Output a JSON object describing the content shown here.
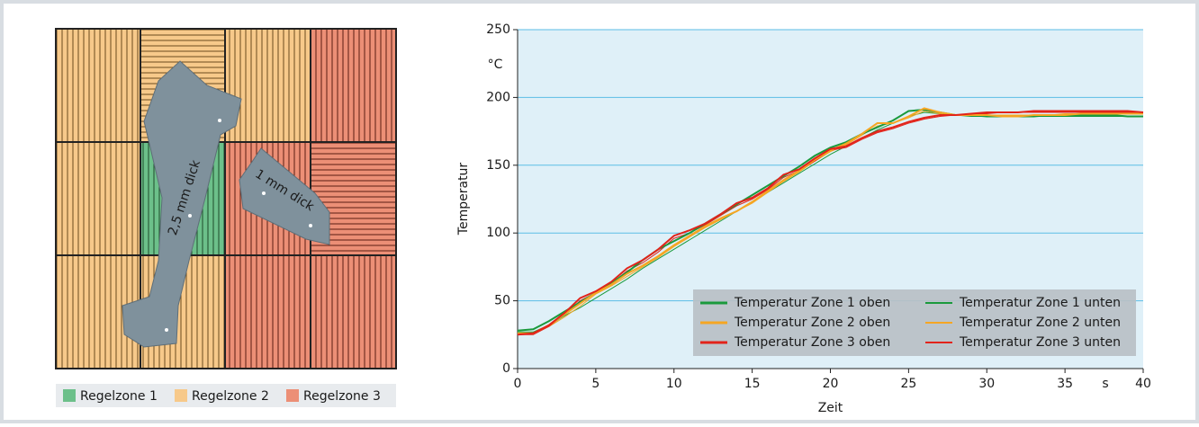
{
  "diagram": {
    "labels": [
      "2,5 mm dick",
      "1 mm dick"
    ],
    "legend": [
      {
        "name": "Regelzone 1",
        "color": "#6cc08a"
      },
      {
        "name": "Regelzone 2",
        "color": "#f7c98a"
      },
      {
        "name": "Regelzone 3",
        "color": "#ec8f76"
      }
    ]
  },
  "chart_data": {
    "type": "line",
    "xlabel": "Zeit",
    "ylabel": "Temperatur",
    "x_unit": "s",
    "y_unit": "°C",
    "x": [
      0,
      1,
      2,
      3,
      4,
      5,
      6,
      7,
      8,
      9,
      10,
      11,
      12,
      13,
      14,
      15,
      16,
      17,
      18,
      19,
      20,
      21,
      22,
      23,
      24,
      25,
      26,
      27,
      28,
      29,
      30,
      31,
      32,
      33,
      34,
      35,
      36,
      37,
      38,
      39,
      40
    ],
    "series": [
      {
        "name": "Temperatur Zone 1 oben",
        "color": "#1a9a3c",
        "width": 2,
        "values": [
          28,
          29,
          35,
          42,
          49,
          56,
          63,
          71,
          80,
          88,
          94,
          100,
          107,
          114,
          121,
          128,
          135,
          142,
          149,
          157,
          163,
          167,
          173,
          178,
          183,
          190,
          191,
          189,
          187,
          187,
          186,
          186,
          186,
          186,
          187,
          187,
          187,
          187,
          187,
          186,
          186
        ]
      },
      {
        "name": "Temperatur Zone 2 oben",
        "color": "#f5a623",
        "width": 2,
        "values": [
          26,
          26,
          32,
          40,
          48,
          56,
          62,
          70,
          76,
          83,
          91,
          98,
          105,
          111,
          116,
          123,
          131,
          139,
          146,
          154,
          161,
          166,
          173,
          181,
          181,
          186,
          192,
          189,
          187,
          187,
          187,
          186,
          186,
          187,
          187,
          187,
          188,
          188,
          188,
          188,
          188
        ]
      },
      {
        "name": "Temperatur Zone 3 oben",
        "color": "#e2231a",
        "width": 2,
        "values": [
          25,
          26,
          32,
          41,
          52,
          57,
          64,
          74,
          80,
          88,
          98,
          102,
          107,
          114,
          122,
          126,
          133,
          143,
          147,
          155,
          162,
          164,
          170,
          175,
          178,
          182,
          185,
          187,
          187,
          188,
          189,
          189,
          189,
          190,
          190,
          190,
          190,
          190,
          190,
          190,
          189
        ]
      },
      {
        "name": "Temperatur Zone 1 unten",
        "color": "#1a9a3c",
        "width": 1,
        "values": [
          27,
          27,
          32,
          39,
          45,
          52,
          59,
          66,
          74,
          81,
          88,
          95,
          102,
          109,
          116,
          123,
          130,
          137,
          144,
          151,
          158,
          164,
          170,
          176,
          181,
          186,
          189,
          188,
          187,
          186,
          186,
          186,
          186,
          186,
          186,
          186,
          186,
          186,
          186,
          186,
          186
        ]
      },
      {
        "name": "Temperatur Zone 2 unten",
        "color": "#f5a623",
        "width": 1,
        "values": [
          25,
          26,
          31,
          38,
          46,
          55,
          61,
          68,
          75,
          82,
          90,
          97,
          104,
          110,
          116,
          122,
          130,
          138,
          145,
          153,
          160,
          165,
          172,
          179,
          181,
          185,
          190,
          188,
          187,
          187,
          187,
          187,
          187,
          187,
          187,
          188,
          188,
          188,
          188,
          188,
          188
        ]
      },
      {
        "name": "Temperatur Zone 3 unten",
        "color": "#e2231a",
        "width": 1,
        "values": [
          25,
          25,
          31,
          40,
          50,
          56,
          63,
          72,
          78,
          86,
          96,
          100,
          106,
          113,
          120,
          125,
          132,
          141,
          146,
          153,
          161,
          163,
          169,
          174,
          177,
          181,
          184,
          186,
          187,
          188,
          188,
          189,
          189,
          189,
          189,
          189,
          189,
          189,
          189,
          189,
          189
        ]
      }
    ],
    "xlim": [
      0,
      40
    ],
    "ylim": [
      0,
      250
    ],
    "xticks": [
      0,
      5,
      10,
      15,
      20,
      25,
      30,
      35,
      40
    ],
    "yticks": [
      0,
      50,
      100,
      150,
      200,
      250
    ],
    "grid": true,
    "legend": "lower right",
    "background": "#dff0f8"
  }
}
